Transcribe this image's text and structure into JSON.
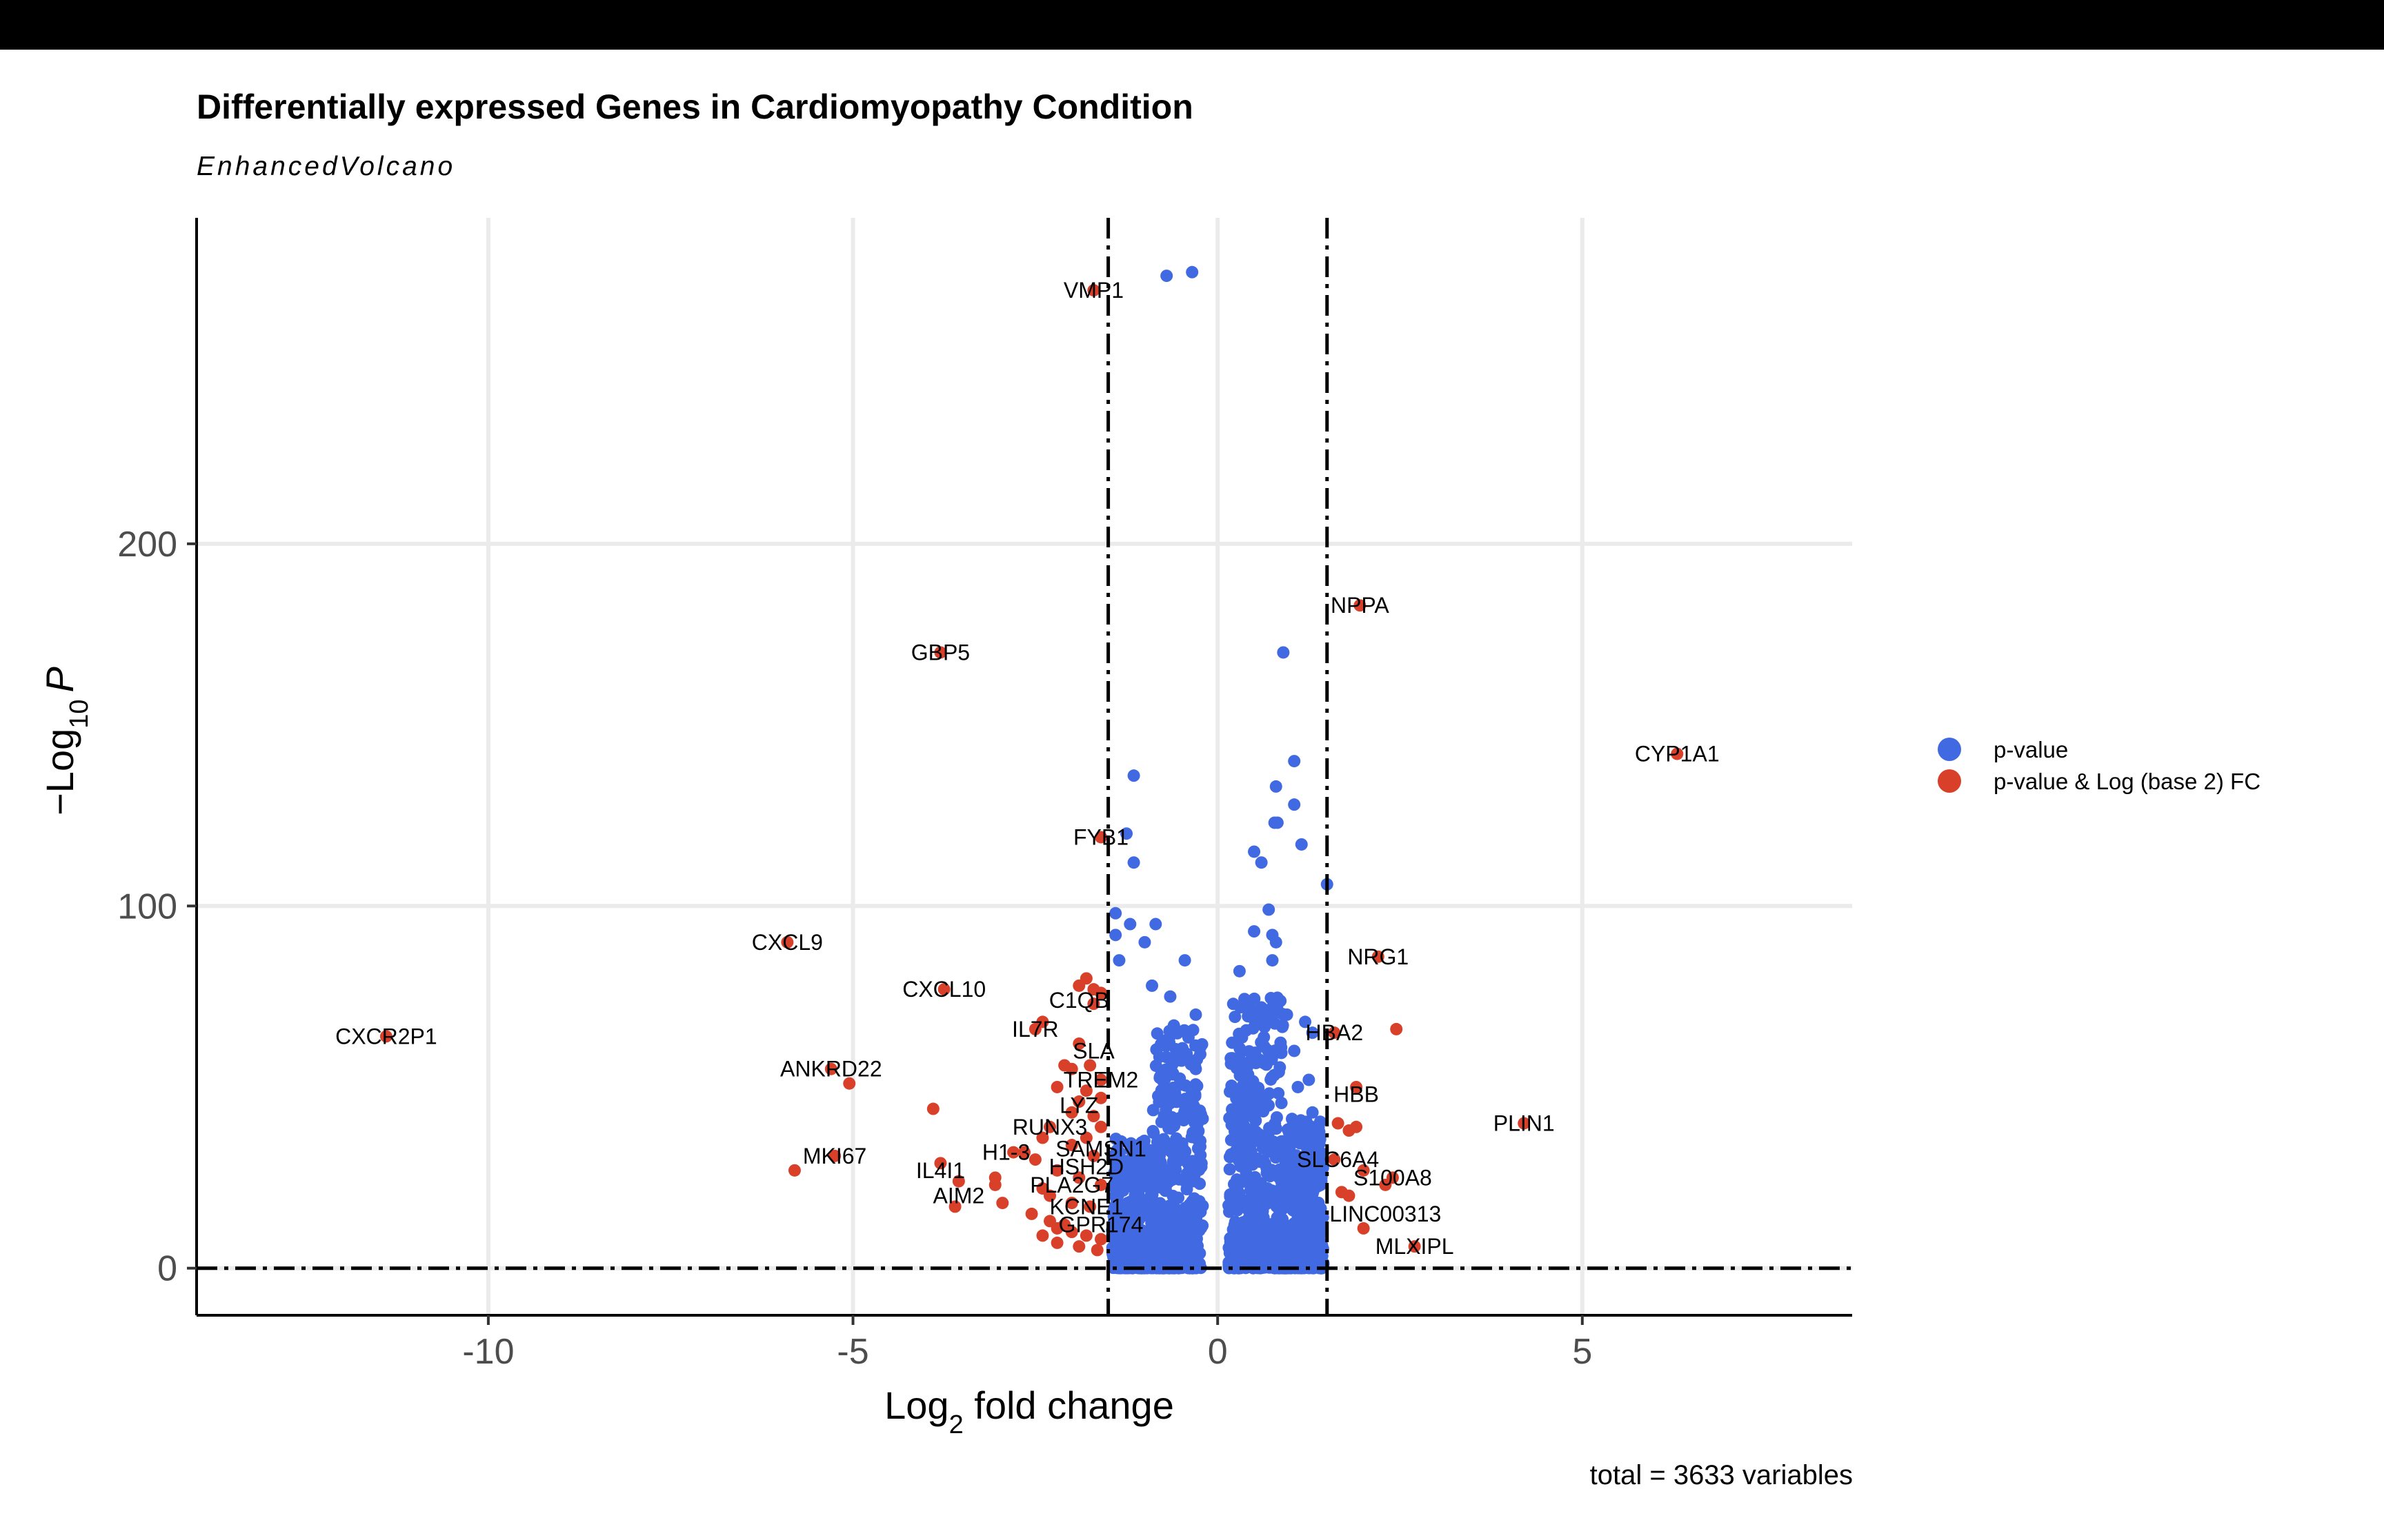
{
  "chart_data": {
    "type": "scatter",
    "title": "Differentially expressed Genes in Cardiomyopathy Condition",
    "subtitle": "EnhancedVolcano",
    "xlabel_main": "Log",
    "xlabel_sub": "2",
    "xlabel_tail": " fold change",
    "ylabel_pre": "−Log",
    "ylabel_sub": "10",
    "ylabel_tail": "P",
    "xlim": [
      -14.0,
      8.7
    ],
    "ylim": [
      -13,
      290
    ],
    "x_ticks": [
      -10,
      -5,
      0,
      5
    ],
    "x_tick_labels": [
      "-10",
      "-5",
      "0",
      "5"
    ],
    "y_ticks": [
      0,
      100,
      200
    ],
    "y_tick_labels": [
      "0",
      "100",
      "200"
    ],
    "grid": true,
    "cutoffs": {
      "log2fc": [
        -1.5,
        1.5
      ],
      "y": 0
    },
    "caption": "total = 3633 variables",
    "legend_position": "right",
    "legend": [
      {
        "label": "p-value",
        "color": "#4169E1"
      },
      {
        "label": "p-value & Log (base 2) FC",
        "color": "#D9402A"
      }
    ],
    "series": [
      {
        "name": "p-value",
        "color": "#4169E1",
        "points": [
          [
            -0.7,
            274
          ],
          [
            -0.35,
            275
          ],
          [
            0.9,
            170
          ],
          [
            1.05,
            140
          ],
          [
            0.8,
            133
          ],
          [
            1.05,
            128
          ],
          [
            0.78,
            123
          ],
          [
            0.82,
            123
          ],
          [
            1.15,
            117
          ],
          [
            1.5,
            106
          ],
          [
            0.5,
            115
          ],
          [
            0.6,
            112
          ],
          [
            -1.15,
            136
          ],
          [
            -1.25,
            120
          ],
          [
            -1.15,
            112
          ],
          [
            -1.4,
            98
          ],
          [
            -1.4,
            92
          ],
          [
            -1.2,
            95
          ],
          [
            -0.85,
            95
          ],
          [
            -1.0,
            90
          ],
          [
            -0.45,
            85
          ],
          [
            0.7,
            99
          ],
          [
            0.5,
            93
          ],
          [
            0.75,
            92
          ],
          [
            0.8,
            90
          ],
          [
            0.3,
            82
          ],
          [
            0.75,
            85
          ],
          [
            -0.65,
            75
          ],
          [
            -0.9,
            78
          ],
          [
            -1.35,
            85
          ],
          [
            -0.6,
            67
          ],
          [
            -0.3,
            70
          ],
          [
            0.5,
            70
          ],
          [
            0.6,
            72
          ],
          [
            0.95,
            70
          ],
          [
            1.2,
            68
          ],
          [
            1.3,
            65
          ],
          [
            -0.3,
            55
          ],
          [
            1.25,
            52
          ],
          [
            1.3,
            43
          ],
          [
            1.05,
            60
          ],
          [
            1.1,
            50
          ]
        ],
        "clusters": [
          {
            "x": [
              -1.45,
              -0.2
            ],
            "y": [
              0,
              66
            ],
            "count": 650
          },
          {
            "x": [
              0.15,
              1.45
            ],
            "y": [
              0,
              75
            ],
            "count": 750
          },
          {
            "x": [
              -1.4,
              -0.3
            ],
            "y": [
              0,
              14
            ],
            "count": 250
          },
          {
            "x": [
              0.15,
              1.4
            ],
            "y": [
              0,
              12
            ],
            "count": 250
          }
        ]
      },
      {
        "name": "p-value & Log (base 2) FC",
        "color": "#D9402A",
        "points": [
          [
            -1.7,
            270
          ],
          [
            -3.8,
            170
          ],
          [
            1.95,
            183
          ],
          [
            6.3,
            142
          ],
          [
            -1.6,
            119
          ],
          [
            -5.9,
            90
          ],
          [
            -3.75,
            77
          ],
          [
            -11.4,
            64
          ],
          [
            -5.3,
            55
          ],
          [
            -5.05,
            51
          ],
          [
            -3.9,
            44
          ],
          [
            -5.25,
            31
          ],
          [
            -5.8,
            27
          ],
          [
            -3.8,
            29
          ],
          [
            -3.55,
            24
          ],
          [
            -3.6,
            17
          ],
          [
            -3.05,
            25
          ],
          [
            -3.05,
            23
          ],
          [
            -2.95,
            18
          ],
          [
            -2.8,
            32
          ],
          [
            -2.65,
            32
          ],
          [
            2.2,
            86
          ],
          [
            2.45,
            66
          ],
          [
            1.6,
            65
          ],
          [
            1.9,
            50
          ],
          [
            1.65,
            40
          ],
          [
            1.8,
            38
          ],
          [
            1.9,
            39
          ],
          [
            4.2,
            40
          ],
          [
            1.6,
            30
          ],
          [
            2.0,
            27
          ],
          [
            2.4,
            25
          ],
          [
            1.7,
            21
          ],
          [
            1.8,
            20
          ],
          [
            2.0,
            11
          ],
          [
            2.7,
            6
          ],
          [
            2.3,
            23
          ],
          [
            -1.8,
            80
          ],
          [
            -1.7,
            77
          ],
          [
            -1.6,
            76
          ],
          [
            -1.9,
            78
          ],
          [
            -1.7,
            73
          ],
          [
            -2.5,
            66
          ],
          [
            -2.4,
            68
          ],
          [
            -1.9,
            62
          ],
          [
            -2.0,
            55
          ],
          [
            -1.75,
            56
          ],
          [
            -2.1,
            56
          ],
          [
            -1.6,
            52
          ],
          [
            -2.2,
            50
          ],
          [
            -1.8,
            49
          ],
          [
            -1.6,
            47
          ],
          [
            -1.9,
            46
          ],
          [
            -2.0,
            43
          ],
          [
            -1.7,
            42
          ],
          [
            -1.6,
            39
          ],
          [
            -2.3,
            39
          ],
          [
            -2.4,
            36
          ],
          [
            -1.8,
            36
          ],
          [
            -2.0,
            34
          ],
          [
            -2.5,
            30
          ],
          [
            -1.7,
            31
          ],
          [
            -2.2,
            27
          ],
          [
            -1.9,
            25
          ],
          [
            -1.6,
            23
          ],
          [
            -2.4,
            22
          ],
          [
            -2.3,
            20
          ],
          [
            -2.0,
            18
          ],
          [
            -1.75,
            17
          ],
          [
            -2.55,
            15
          ],
          [
            -2.3,
            13
          ],
          [
            -2.2,
            11
          ],
          [
            -2.0,
            10
          ],
          [
            -1.8,
            9
          ],
          [
            -1.6,
            8
          ],
          [
            -2.4,
            9
          ],
          [
            -2.2,
            7
          ],
          [
            -1.9,
            6
          ],
          [
            -1.65,
            5
          ],
          [
            -2.1,
            12
          ]
        ]
      }
    ],
    "gene_labels": [
      {
        "text": "VMP1",
        "x": -1.7,
        "y": 270
      },
      {
        "text": "GBP5",
        "x": -3.8,
        "y": 170
      },
      {
        "text": "NPPA",
        "x": 1.95,
        "y": 183
      },
      {
        "text": "CYP1A1",
        "x": 6.3,
        "y": 142
      },
      {
        "text": "FYB1",
        "x": -1.6,
        "y": 119
      },
      {
        "text": "CXCL9",
        "x": -5.9,
        "y": 90
      },
      {
        "text": "NRG1",
        "x": 2.2,
        "y": 86
      },
      {
        "text": "CXCL10",
        "x": -3.75,
        "y": 77
      },
      {
        "text": "C1QB",
        "x": -1.9,
        "y": 74
      },
      {
        "text": "IL7R",
        "x": -2.5,
        "y": 66
      },
      {
        "text": "HBA2",
        "x": 1.6,
        "y": 65
      },
      {
        "text": "CXCR2P1",
        "x": -11.4,
        "y": 64
      },
      {
        "text": "SLA",
        "x": -1.7,
        "y": 60
      },
      {
        "text": "ANKRD22",
        "x": -5.3,
        "y": 55
      },
      {
        "text": "TREM2",
        "x": -1.6,
        "y": 52
      },
      {
        "text": "HBB",
        "x": 1.9,
        "y": 48
      },
      {
        "text": "LYZ",
        "x": -1.9,
        "y": 45
      },
      {
        "text": "PLIN1",
        "x": 4.2,
        "y": 40
      },
      {
        "text": "RUNX3",
        "x": -2.3,
        "y": 39
      },
      {
        "text": "SAMSN1",
        "x": -1.6,
        "y": 33
      },
      {
        "text": "H1-3",
        "x": -2.9,
        "y": 32
      },
      {
        "text": "MKI67",
        "x": -5.25,
        "y": 31
      },
      {
        "text": "HSH2D",
        "x": -1.8,
        "y": 28
      },
      {
        "text": "IL4I1",
        "x": -3.8,
        "y": 27
      },
      {
        "text": "SLC6A4",
        "x": 1.65,
        "y": 30
      },
      {
        "text": "S100A8",
        "x": 2.4,
        "y": 25
      },
      {
        "text": "PLA2G7",
        "x": -2.0,
        "y": 23
      },
      {
        "text": "AIM2",
        "x": -3.55,
        "y": 20
      },
      {
        "text": "KCNE1",
        "x": -1.8,
        "y": 17
      },
      {
        "text": "LINC00313",
        "x": 2.3,
        "y": 15
      },
      {
        "text": "GPR174",
        "x": -1.6,
        "y": 12
      },
      {
        "text": "MLXIPL",
        "x": 2.7,
        "y": 6
      }
    ]
  }
}
